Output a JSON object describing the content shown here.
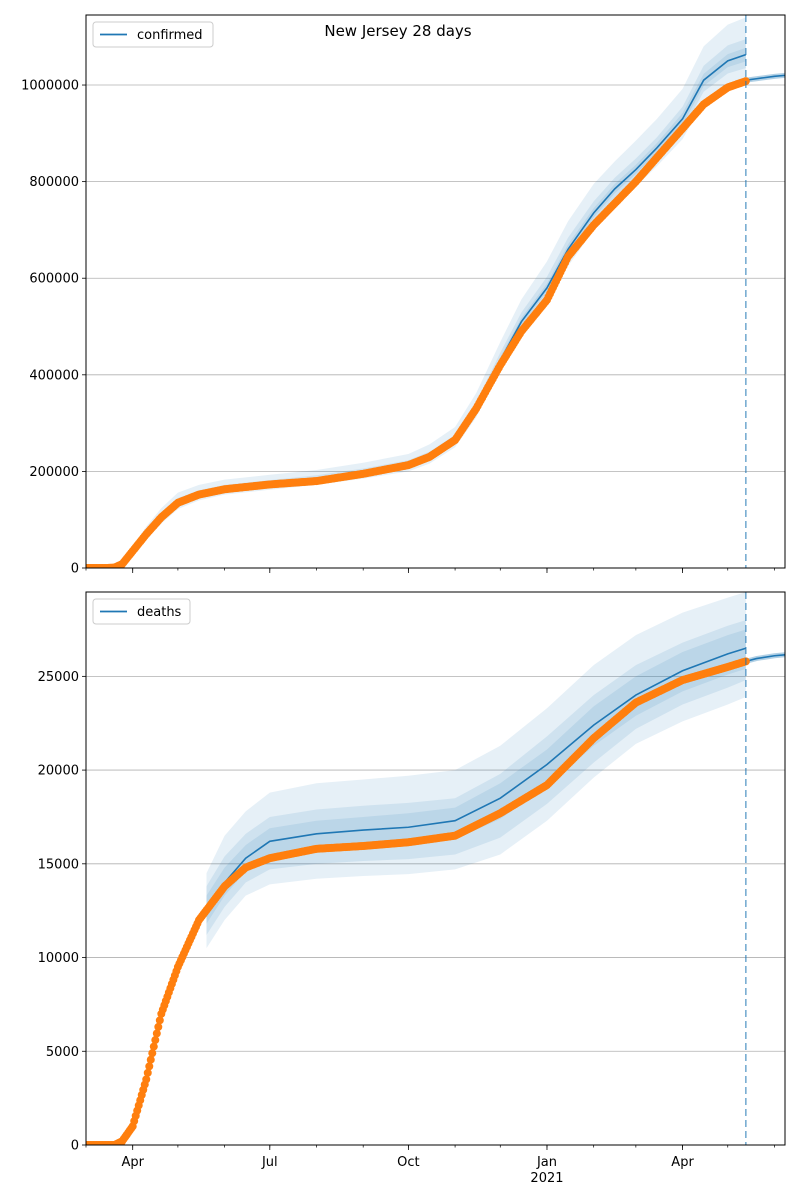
{
  "figure": {
    "title": "New Jersey 28 days"
  },
  "chart_data": [
    {
      "type": "line",
      "title": "New Jersey 28 days",
      "legend": {
        "label": "confirmed",
        "placement": "top-left"
      },
      "grid": "horizontal",
      "xlim": [
        "2020-03-01",
        "2021-06-08"
      ],
      "ylim": [
        0,
        1145000
      ],
      "x_ticks": [
        {
          "date": "2020-04-01",
          "label": "Apr"
        },
        {
          "date": "2020-07-01",
          "label": "Jul"
        },
        {
          "date": "2020-10-01",
          "label": "Oct"
        },
        {
          "date": "2021-01-01",
          "label": "Jan",
          "sublabel": "2021"
        },
        {
          "date": "2021-04-01",
          "label": "Apr"
        }
      ],
      "y_ticks": [
        0,
        200000,
        400000,
        600000,
        800000,
        1000000
      ],
      "forecast_start": "2021-05-13",
      "colors": {
        "model": "#1f77b4",
        "observed": "#ff7f0e",
        "band": "#1f77b4"
      },
      "series": [
        {
          "name": "confirmed",
          "kind": "model",
          "x": [
            "2020-03-01",
            "2020-03-20",
            "2020-03-25",
            "2020-04-01",
            "2020-04-10",
            "2020-04-20",
            "2020-05-01",
            "2020-05-15",
            "2020-06-01",
            "2020-07-01",
            "2020-08-01",
            "2020-09-01",
            "2020-10-01",
            "2020-10-15",
            "2020-11-01",
            "2020-11-15",
            "2020-12-01",
            "2020-12-15",
            "2021-01-01",
            "2021-01-15",
            "2021-02-01",
            "2021-02-15",
            "2021-03-01",
            "2021-03-15",
            "2021-04-01",
            "2021-04-15",
            "2021-05-01",
            "2021-05-13"
          ],
          "y": [
            0,
            2000,
            10000,
            35000,
            70000,
            105000,
            135000,
            152000,
            163000,
            173000,
            183000,
            197000,
            213000,
            230000,
            265000,
            330000,
            430000,
            510000,
            580000,
            660000,
            735000,
            785000,
            825000,
            870000,
            930000,
            1010000,
            1050000,
            1063000
          ],
          "bands": [
            {
              "level": "outer",
              "lower": [
                0,
                1000,
                7000,
                28000,
                58000,
                92000,
                122000,
                140000,
                152000,
                162000,
                172000,
                185000,
                200000,
                216000,
                250000,
                312000,
                408000,
                485000,
                550000,
                625000,
                700000,
                750000,
                790000,
                832000,
                888000,
                965000,
                1000000,
                1005000
              ],
              "upper": [
                0,
                3000,
                14000,
                45000,
                86000,
                124000,
                156000,
                172000,
                183000,
                193000,
                203000,
                218000,
                236000,
                256000,
                292000,
                362000,
                468000,
                556000,
                635000,
                718000,
                795000,
                842000,
                885000,
                930000,
                992000,
                1080000,
                1125000,
                1140000
              ]
            },
            {
              "level": "middle",
              "lower": [
                0,
                1500,
                8000,
                31000,
                63000,
                97000,
                127000,
                145000,
                156000,
                166000,
                176000,
                190000,
                205000,
                221000,
                256000,
                320000,
                418000,
                496000,
                564000,
                641000,
                716000,
                766000,
                806000,
                850000,
                907000,
                986000,
                1024000,
                1035000
              ],
              "upper": [
                0,
                2500,
                12000,
                40000,
                78000,
                114000,
                145000,
                161000,
                172000,
                182000,
                192000,
                206000,
                223000,
                241000,
                276000,
                343000,
                446000,
                529000,
                603000,
                684000,
                759000,
                808000,
                848000,
                892000,
                955000,
                1040000,
                1082000,
                1095000
              ]
            },
            {
              "level": "inner",
              "lower": [
                0,
                1800,
                9000,
                33000,
                66000,
                100000,
                130000,
                148000,
                159000,
                169000,
                179000,
                193000,
                209000,
                225000,
                260000,
                325000,
                424000,
                503000,
                572000,
                651000,
                726000,
                776000,
                816000,
                860000,
                918000,
                998000,
                1037000,
                1049000
              ],
              "upper": [
                0,
                2200,
                11000,
                37000,
                74000,
                110000,
                140000,
                156000,
                167000,
                177000,
                187000,
                201000,
                217000,
                235000,
                270000,
                336000,
                437000,
                518000,
                589000,
                670000,
                745000,
                795000,
                835000,
                880000,
                942000,
                1023000,
                1064000,
                1077000
              ]
            }
          ]
        },
        {
          "name": "confirmed forecast",
          "kind": "forecast",
          "x": [
            "2021-05-13",
            "2021-05-20",
            "2021-06-01",
            "2021-06-08"
          ],
          "y": [
            1010000,
            1013000,
            1018000,
            1020000
          ]
        },
        {
          "name": "confirmed observed",
          "kind": "observed",
          "x": [
            "2020-03-01",
            "2020-03-15",
            "2020-03-20",
            "2020-03-25",
            "2020-04-01",
            "2020-04-10",
            "2020-04-20",
            "2020-05-01",
            "2020-05-15",
            "2020-06-01",
            "2020-07-01",
            "2020-08-01",
            "2020-09-01",
            "2020-10-01",
            "2020-10-15",
            "2020-11-01",
            "2020-11-15",
            "2020-12-01",
            "2020-12-15",
            "2021-01-01",
            "2021-01-15",
            "2021-02-01",
            "2021-02-15",
            "2021-03-01",
            "2021-03-15",
            "2021-04-01",
            "2021-04-15",
            "2021-05-01",
            "2021-05-13"
          ],
          "y": [
            0,
            0,
            1000,
            8000,
            35000,
            70000,
            105000,
            135000,
            152000,
            163000,
            173000,
            180000,
            195000,
            213000,
            230000,
            265000,
            330000,
            420000,
            490000,
            555000,
            645000,
            710000,
            755000,
            800000,
            850000,
            910000,
            960000,
            995000,
            1008000
          ]
        }
      ]
    },
    {
      "type": "line",
      "legend": {
        "label": "deaths",
        "placement": "top-left"
      },
      "grid": "horizontal",
      "xlim": [
        "2020-03-01",
        "2021-06-08"
      ],
      "ylim": [
        0,
        29500
      ],
      "x_ticks": [
        {
          "date": "2020-04-01",
          "label": "Apr"
        },
        {
          "date": "2020-07-01",
          "label": "Jul"
        },
        {
          "date": "2020-10-01",
          "label": "Oct"
        },
        {
          "date": "2021-01-01",
          "label": "Jan",
          "sublabel": "2021"
        },
        {
          "date": "2021-04-01",
          "label": "Apr"
        }
      ],
      "y_ticks": [
        0,
        5000,
        10000,
        15000,
        20000,
        25000
      ],
      "forecast_start": "2021-05-13",
      "colors": {
        "model": "#1f77b4",
        "observed": "#ff7f0e",
        "band": "#1f77b4"
      },
      "series": [
        {
          "name": "deaths",
          "kind": "model",
          "x": [
            "2020-05-20",
            "2020-06-01",
            "2020-06-15",
            "2020-07-01",
            "2020-08-01",
            "2020-09-01",
            "2020-10-01",
            "2020-11-01",
            "2020-12-01",
            "2021-01-01",
            "2021-02-01",
            "2021-03-01",
            "2021-04-01",
            "2021-05-01",
            "2021-05-13"
          ],
          "y": [
            12600,
            14000,
            15300,
            16200,
            16600,
            16800,
            16950,
            17300,
            18500,
            20300,
            22400,
            24000,
            25300,
            26200,
            26500
          ],
          "bands": [
            {
              "level": "outer",
              "lower": [
                10500,
                12000,
                13300,
                13900,
                14200,
                14350,
                14450,
                14700,
                15500,
                17300,
                19600,
                21400,
                22600,
                23500,
                23900
              ],
              "upper": [
                14500,
                16500,
                17800,
                18800,
                19300,
                19500,
                19700,
                20000,
                21300,
                23300,
                25600,
                27200,
                28400,
                29200,
                29500
              ]
            },
            {
              "level": "middle",
              "lower": [
                11200,
                12700,
                14000,
                14700,
                15000,
                15150,
                15250,
                15500,
                16400,
                18200,
                20400,
                22200,
                23500,
                24400,
                24800
              ],
              "upper": [
                13800,
                15400,
                16600,
                17500,
                17900,
                18100,
                18250,
                18500,
                19800,
                21800,
                24000,
                25600,
                26800,
                27700,
                28000
              ]
            },
            {
              "level": "inner",
              "lower": [
                11800,
                13300,
                14600,
                15300,
                15700,
                15900,
                16000,
                16300,
                17400,
                19100,
                21300,
                22900,
                24200,
                25100,
                25400
              ],
              "upper": [
                13300,
                14800,
                16000,
                16900,
                17300,
                17500,
                17700,
                18000,
                19300,
                21100,
                23400,
                25000,
                26300,
                27200,
                27500
              ]
            }
          ]
        },
        {
          "name": "deaths forecast",
          "kind": "forecast",
          "x": [
            "2021-05-13",
            "2021-05-20",
            "2021-06-01",
            "2021-06-08"
          ],
          "y": [
            25800,
            25950,
            26100,
            26150
          ]
        },
        {
          "name": "deaths observed",
          "kind": "observed",
          "x": [
            "2020-03-01",
            "2020-03-20",
            "2020-03-25",
            "2020-04-01",
            "2020-04-10",
            "2020-04-20",
            "2020-05-01",
            "2020-05-15",
            "2020-06-01",
            "2020-06-15",
            "2020-07-01",
            "2020-08-01",
            "2020-09-01",
            "2020-10-01",
            "2020-11-01",
            "2020-12-01",
            "2021-01-01",
            "2021-02-01",
            "2021-03-01",
            "2021-04-01",
            "2021-05-01",
            "2021-05-13"
          ],
          "y": [
            0,
            0,
            200,
            1000,
            3500,
            7000,
            9500,
            12000,
            13800,
            14800,
            15300,
            15800,
            15950,
            16150,
            16500,
            17700,
            19200,
            21700,
            23600,
            24800,
            25500,
            25800
          ]
        }
      ]
    }
  ]
}
